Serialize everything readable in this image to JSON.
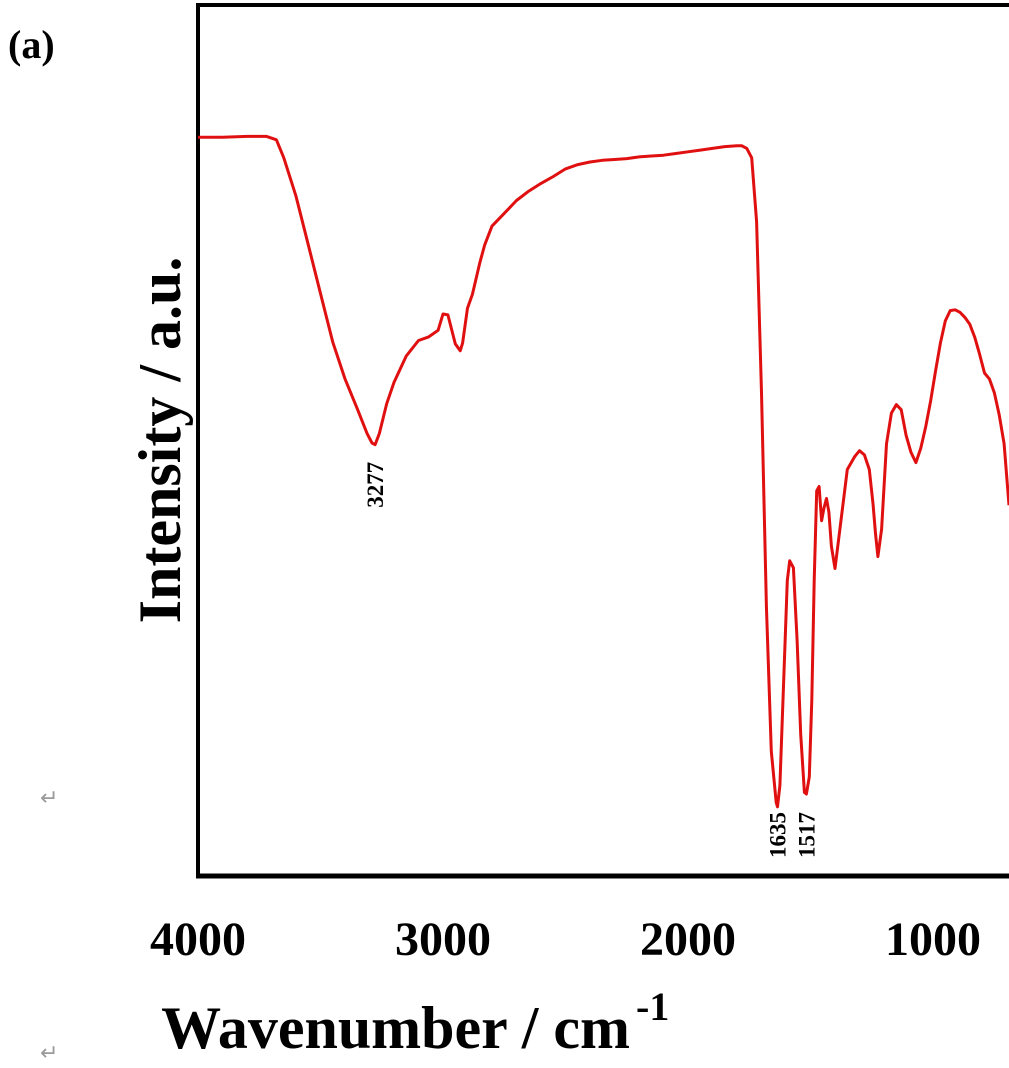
{
  "panel_label": "(a)",
  "return_marks": [
    "↵",
    "↵"
  ],
  "chart_data": {
    "type": "line",
    "xlabel": "Wavenumber / cm",
    "xlabel_superscript": "-1",
    "ylabel": "Intensity / a.u.",
    "xlim": [
      4000,
      690
    ],
    "ylim": [
      0,
      100
    ],
    "x_reversed": true,
    "x_ticks": [
      4000,
      3000,
      2000,
      1000
    ],
    "x_tick_labels": [
      "4000",
      "3000",
      "2000",
      "1000"
    ],
    "y_ticks_shown": false,
    "grid": false,
    "legend": false,
    "line_color": "#e01010",
    "annotations": [
      {
        "label": "3277",
        "x": 3277,
        "y": 54
      },
      {
        "label": "1635",
        "x": 1635,
        "y": 13
      },
      {
        "label": "1517",
        "x": 1517,
        "y": 13
      }
    ],
    "series": [
      {
        "x": [
          4000,
          3900,
          3800,
          3720,
          3680,
          3650,
          3600,
          3550,
          3500,
          3450,
          3400,
          3350,
          3310,
          3290,
          3277,
          3260,
          3230,
          3200,
          3150,
          3100,
          3060,
          3020,
          3000,
          2980,
          2950,
          2930,
          2920,
          2900,
          2880,
          2850,
          2830,
          2800,
          2750,
          2700,
          2650,
          2600,
          2550,
          2500,
          2450,
          2400,
          2350,
          2300,
          2250,
          2200,
          2150,
          2100,
          2050,
          2000,
          1950,
          1900,
          1850,
          1800,
          1780,
          1760,
          1740,
          1720,
          1700,
          1680,
          1660,
          1640,
          1635,
          1625,
          1610,
          1595,
          1585,
          1570,
          1555,
          1540,
          1525,
          1517,
          1505,
          1495,
          1485,
          1475,
          1465,
          1455,
          1445,
          1435,
          1425,
          1415,
          1400,
          1380,
          1350,
          1320,
          1300,
          1280,
          1260,
          1245,
          1235,
          1225,
          1210,
          1190,
          1170,
          1150,
          1130,
          1110,
          1090,
          1070,
          1050,
          1030,
          1010,
          990,
          970,
          950,
          930,
          910,
          890,
          870,
          850,
          830,
          810,
          790,
          770,
          750,
          730,
          710,
          690
        ],
        "y": [
          89.9,
          89.9,
          90.0,
          90.0,
          89.6,
          87.5,
          83.0,
          77.3,
          71.6,
          65.9,
          61.6,
          58.1,
          55.2,
          54.1,
          53.9,
          55.2,
          58.7,
          61.2,
          64.3,
          66.1,
          66.5,
          67.3,
          69.2,
          69.1,
          65.7,
          64.9,
          65.8,
          69.9,
          71.5,
          75.2,
          77.3,
          79.5,
          81.0,
          82.5,
          83.6,
          84.5,
          85.3,
          86.2,
          86.7,
          87.0,
          87.2,
          87.3,
          87.4,
          87.6,
          87.7,
          87.8,
          88.0,
          88.2,
          88.4,
          88.6,
          88.8,
          88.9,
          88.9,
          88.6,
          87.5,
          80.0,
          60.0,
          35.0,
          18.0,
          12.0,
          11.5,
          14.0,
          26.0,
          38.0,
          40.3,
          39.5,
          31.0,
          20.0,
          13.2,
          13.0,
          15.0,
          24.0,
          38.0,
          48.5,
          49.0,
          45.0,
          46.5,
          47.6,
          46.0,
          42.0,
          39.4,
          44.0,
          51.0,
          52.5,
          53.2,
          52.7,
          51.0,
          47.0,
          43.5,
          40.8,
          44.0,
          54.0,
          57.6,
          58.6,
          58.0,
          55.0,
          53.0,
          51.8,
          53.5,
          56.0,
          59.0,
          62.5,
          65.8,
          68.4,
          69.6,
          69.7,
          69.4,
          68.8,
          68.0,
          66.5,
          64.5,
          62.3,
          61.6,
          60.0,
          57.4,
          54.0,
          46.8
        ]
      }
    ]
  }
}
